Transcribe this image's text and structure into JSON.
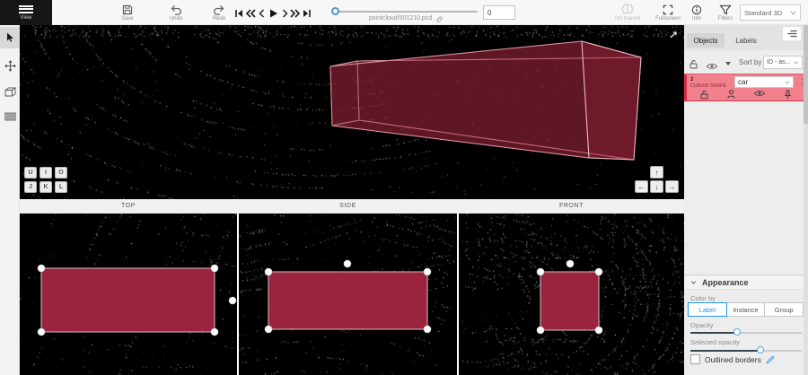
{
  "colors": {
    "annotation": "#a22640",
    "annotation_edge": "#e79aa8",
    "selected_row": "#f0818d",
    "row_accent": "#d92b43",
    "accent_blue": "#2196f3"
  },
  "toolbar": {
    "menu_label": "View",
    "save_label": "Save",
    "undo_label": "Undo",
    "redo_label": "Redo",
    "filename": "pointcloud/001210.pcd",
    "frame_value": "0",
    "not_trained_label": "not trained",
    "fullscreen_label": "Fullscreen",
    "info_label": "Info",
    "filters_label": "Filters",
    "mode_value": "Standard 3D"
  },
  "viewport": {
    "key_hints": [
      "U",
      "I",
      "O",
      "J",
      "K",
      "L"
    ]
  },
  "icons": {
    "up": "↑",
    "left": "←",
    "down": "↓",
    "right": "→",
    "more": "⋮"
  },
  "ortho_views": {
    "top": "TOP",
    "side": "SIDE",
    "front": "FRONT"
  },
  "right_panel": {
    "tabs": [
      {
        "label": "Objects"
      },
      {
        "label": "Labels"
      }
    ],
    "sort_by_label": "Sort by",
    "sort_value": "ID - as...",
    "object_row": {
      "id": "3",
      "type": "CUBOID SHAPE",
      "class_value": "car"
    },
    "appearance": {
      "title": "Appearance",
      "color_by_label": "Color by",
      "color_by_options": [
        "Label",
        "Instance",
        "Group"
      ],
      "opacity_label": "Opacity",
      "opacity_percent": 43,
      "selected_opacity_label": "Selected opacity",
      "selected_opacity_percent": 64,
      "outlined_borders_label": "Outlined borders"
    }
  }
}
